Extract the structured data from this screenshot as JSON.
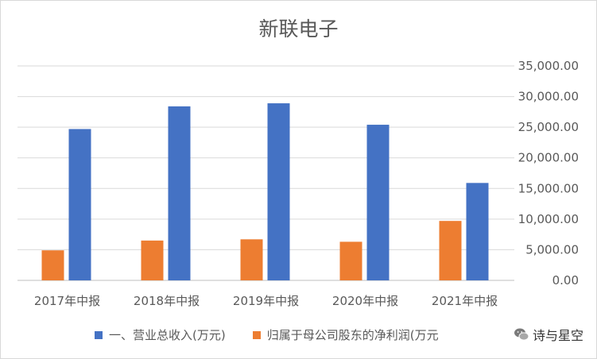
{
  "chart_data": {
    "type": "bar",
    "title": "新联电子",
    "categories": [
      "2017年中报",
      "2018年中报",
      "2019年中报",
      "2020年中报",
      "2021年中报"
    ],
    "series": [
      {
        "name": "一、营业总收入(万元)",
        "color": "#4472c4",
        "values": [
          24700,
          28400,
          28900,
          25400,
          15900
        ]
      },
      {
        "name": "归属于母公司股东的净利润(万元)",
        "color": "#ed7d31",
        "values": [
          4900,
          6500,
          6700,
          6300,
          9700
        ]
      }
    ],
    "ylim": [
      0,
      35000
    ],
    "yticks": [
      "0.00",
      "5,000.00",
      "10,000.00",
      "15,000.00",
      "20,000.00",
      "25,000.00",
      "30,000.00",
      "35,000.00"
    ],
    "y_axis_side": "right",
    "grid": true,
    "legend_position": "bottom",
    "legend_labels": [
      "一、营业总收入(万元)",
      "归属于母公司股东的净利润(万元"
    ]
  },
  "watermark": {
    "text": "诗与星空"
  }
}
